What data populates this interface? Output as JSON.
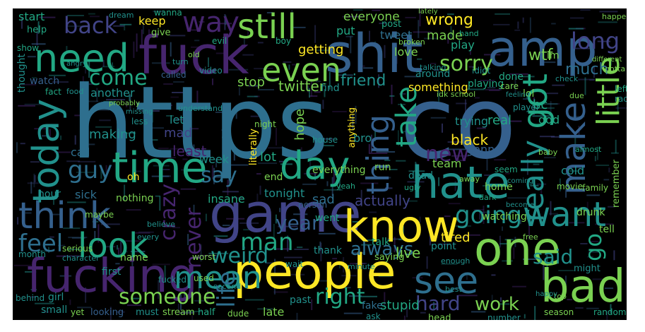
{
  "palette": {
    "background": "#000000",
    "purple": "#46256e",
    "indigo": "#414487",
    "blue": "#35608d",
    "steel": "#2e6f8e",
    "teal": "#21918c",
    "green": "#22a884",
    "lightgreen": "#7ad151",
    "yellow": "#fde725"
  },
  "words": {
    "https": "https",
    "co": "co",
    "fuck": "fuck",
    "shit": "shit",
    "amp": "amp",
    "need": "need",
    "still": "still",
    "way": "way",
    "back": "back",
    "even": "even",
    "got": "got",
    "really": "really",
    "make": "make",
    "little": "little",
    "today": "today",
    "time": "time",
    "day": "day",
    "thing": "thing",
    "take": "take",
    "hate": "hate",
    "want": "want",
    "think": "think",
    "game": "game",
    "know": "know",
    "one": "one",
    "feel": "feel",
    "look": "look",
    "never": "never",
    "crazy": "crazy",
    "fucking": "fucking",
    "people": "people",
    "bad": "bad",
    "see": "see",
    "mean": "mean",
    "someone": "someone",
    "life": "life",
    "right": "right",
    "hard": "hard",
    "work": "work",
    "going": "going",
    "say": "say",
    "guy": "guy",
    "man": "man",
    "year": "year",
    "weird": "weird",
    "always": "always",
    "said": "said",
    "go": "go",
    "new": "new",
    "sorry": "sorry",
    "come": "come",
    "long": "long",
    "wtf": "wtf",
    "much": "much",
    "everyone": "everyone",
    "wrong": "wrong",
    "made": "made",
    "love": "love",
    "play": "play",
    "friend": "friend",
    "something": "something",
    "another": "another",
    "stop": "stop",
    "twitter": "twitter",
    "getting": "getting",
    "watch": "watch",
    "let": "let",
    "making": "making",
    "call": "call",
    "mad": "mad",
    "least": "least",
    "week": "week",
    "literally": "literally",
    "lot": "lot",
    "tonight": "tonight",
    "sick": "sick",
    "nothing": "nothing",
    "insane": "insane",
    "sad": "sad",
    "actually": "actually",
    "live": "live",
    "tired": "tired",
    "watching": "watching",
    "black": "black",
    "real": "real",
    "trying": "trying",
    "hope": "hope",
    "god": "god",
    "cold": "cold",
    "team": "team",
    "gonna": "gonna",
    "stupid": "stupid",
    "fake": "fake",
    "late": "late",
    "bro": "bro",
    "point": "point",
    "thank": "thank",
    "first": "first",
    "went": "went",
    "hour": "hour",
    "maybe": "maybe",
    "girl": "girl",
    "oh": "oh",
    "start": "start",
    "keep": "keep",
    "give": "give",
    "help": "help",
    "tweet": "tweet",
    "post": "post",
    "put": "put",
    "im": "im",
    "lol": "lol",
    "bc": "bc",
    "around": "around",
    "playing": "playing",
    "idk school": "idk school",
    "find": "find",
    "fact": "fact",
    "called": "called",
    "everything": "everything",
    "end": "end",
    "house": "house",
    "person": "person",
    "yeah": "yeah",
    "anything": "anything",
    "thought": "thought",
    "show": "show",
    "family": "family",
    "tell": "tell",
    "remember": "remember",
    "might": "might",
    "dead": "dead",
    "run": "run",
    "home": "home",
    "movie": "movie",
    "season": "season",
    "random": "random",
    "ask": "ask",
    "number": "number",
    "past": "past",
    "head": "head",
    "small": "small",
    "yet": "yet",
    "looking": "looking",
    "must": "must",
    "stream": "stream",
    "half": "half",
    "dude": "dude",
    "behind": "behind",
    "month": "month",
    "name": "name",
    "character": "character",
    "serious": "serious",
    "believe": "believe",
    "every": "every",
    "second": "second",
    "worst": "worst",
    "fucked": "fucked",
    "used": "used",
    "saying": "saying",
    "talk": "talk",
    "wait": "wait",
    "minute": "minute",
    "enough": "enough",
    "drunk": "drunk",
    "sleep": "sleep",
    "done": "done",
    "care": "care",
    "idiot": "idiot",
    "happen": "happen",
    "different": "different",
    "almost": "almost",
    "player": "player",
    "left": "left",
    "race": "race",
    "due": "due",
    "check": "check",
    "gotta": "gotta",
    "lately": "lately",
    "wanna": "wanna",
    "broken": "broken",
    "talking": "talking",
    "hand": "hand",
    "boy": "boy",
    "evil": "evil",
    "angry": "angry",
    "old": "old",
    "food": "food",
    "video": "video",
    "understand": "understand",
    "missing": "missing",
    "less": "less",
    "probably": "probably",
    "night": "night",
    "coming": "coming",
    "baby": "baby",
    "seem": "seem",
    "dark": "dark",
    "become": "become",
    "ugly": "ugly",
    "away": "away",
    "free": "free",
    "top": "top",
    "happy": "happy",
    "best": "best",
    "turn": "turn",
    "dream": "dream",
    "feeling": "feeling"
  }
}
